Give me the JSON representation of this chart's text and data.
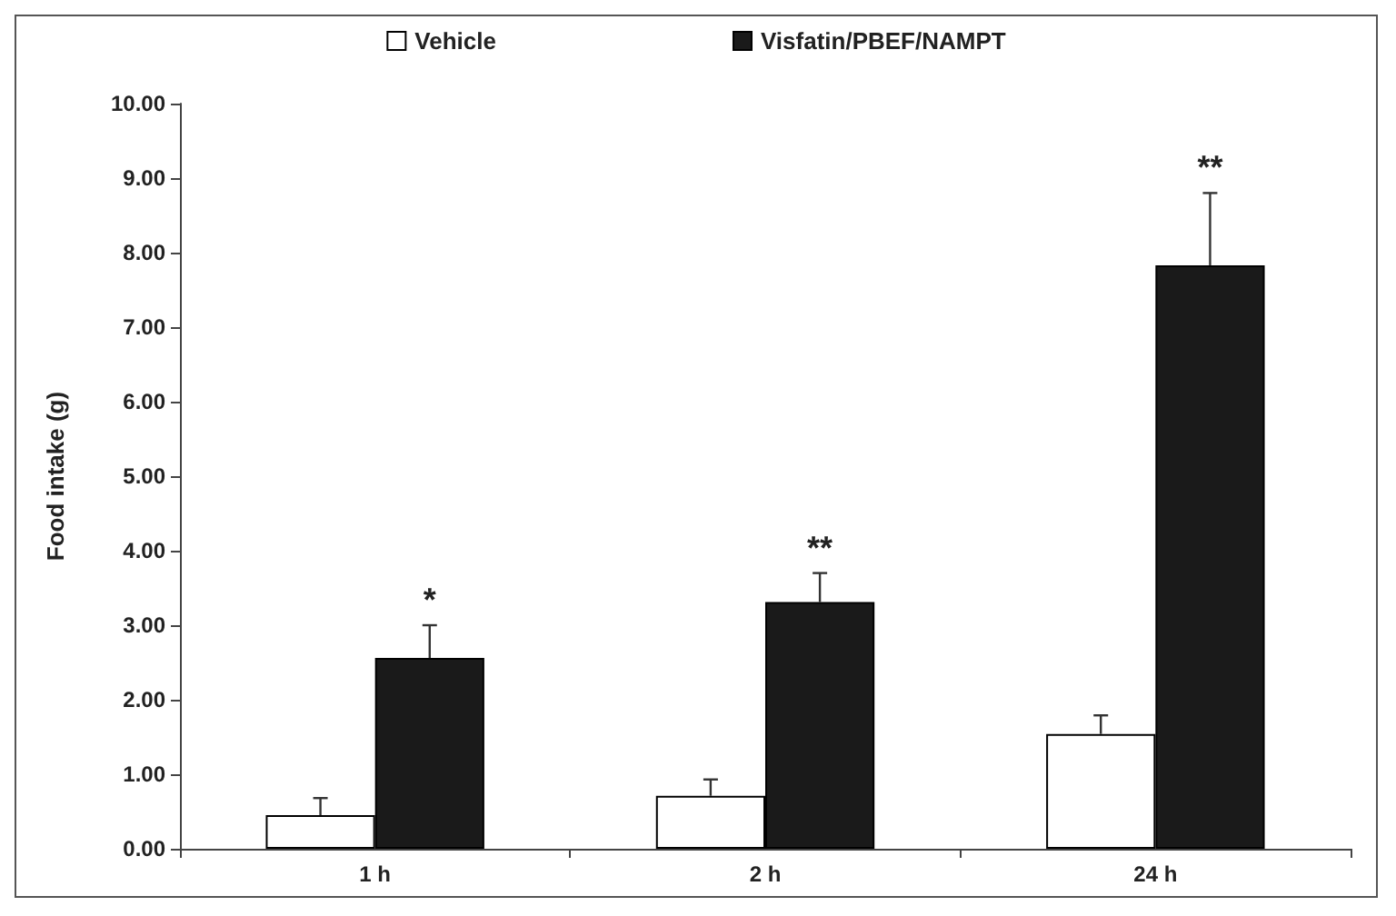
{
  "chart_data": {
    "type": "bar",
    "ylabel": "Food intake (g)",
    "categories": [
      "1 h",
      "2 h",
      "24 h"
    ],
    "series": [
      {
        "name": "Vehicle",
        "color": "#ffffff",
        "values": [
          0.45,
          0.71,
          1.54
        ],
        "errors": [
          [
            0.45,
            0.68
          ],
          [
            0.71,
            0.93
          ],
          [
            1.54,
            1.79
          ]
        ]
      },
      {
        "name": "Visfatin/PBEF/NAMPT",
        "color": "#1a1a1a",
        "values": [
          2.56,
          3.31,
          7.83
        ],
        "errors": [
          [
            2.56,
            3.0
          ],
          [
            3.31,
            3.7
          ],
          [
            7.83,
            8.8
          ]
        ]
      }
    ],
    "ylim": [
      0,
      10
    ],
    "yticks": [
      {
        "value": 0,
        "label": "0.00"
      },
      {
        "value": 1,
        "label": "1.00"
      },
      {
        "value": 2,
        "label": "2.00"
      },
      {
        "value": 3,
        "label": "3.00"
      },
      {
        "value": 4,
        "label": "4.00"
      },
      {
        "value": 5,
        "label": "5.00"
      },
      {
        "value": 6,
        "label": "6.00"
      },
      {
        "value": 7,
        "label": "7.00"
      },
      {
        "value": 8,
        "label": "8.00"
      },
      {
        "value": 9,
        "label": "9.00"
      },
      {
        "value": 10,
        "label": "10.00"
      }
    ],
    "annotations": [
      "*",
      "**",
      "**"
    ],
    "grid": false,
    "legend": "top"
  }
}
